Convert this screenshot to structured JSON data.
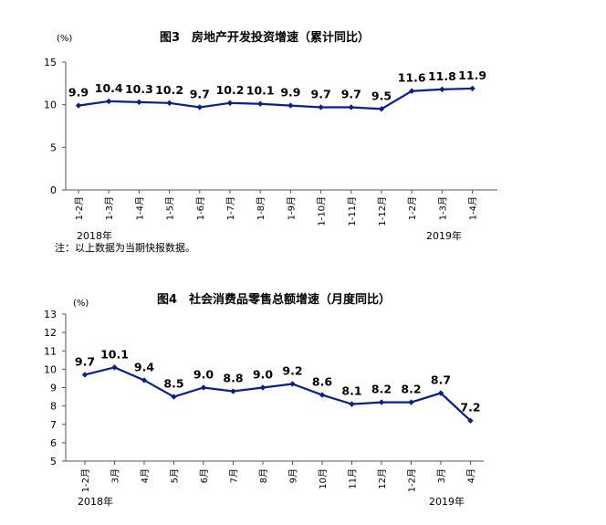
{
  "chart_data": [
    {
      "type": "line",
      "title": "图3　房地产开发投资增速（累计同比）",
      "unit": "(%)",
      "ylim": [
        0,
        15
      ],
      "yticks": [
        0,
        5,
        10,
        15
      ],
      "categories": [
        "1-2月",
        "1-3月",
        "1-4月",
        "1-5月",
        "1-6月",
        "1-7月",
        "1-8月",
        "1-9月",
        "1-10月",
        "1-11月",
        "1-12月",
        "1-2月",
        "1-3月",
        "1-4月"
      ],
      "values": [
        9.9,
        10.4,
        10.3,
        10.2,
        9.7,
        10.2,
        10.1,
        9.9,
        9.7,
        9.7,
        9.5,
        11.6,
        11.8,
        11.9
      ],
      "year_labels": [
        "2018年",
        "2019年"
      ],
      "note": "注：以上数据为当期快报数据。",
      "color": "#0a1f8f"
    },
    {
      "type": "line",
      "title": "图4　社会消费品零售总额增速（月度同比）",
      "unit": "(%)",
      "ylim": [
        5,
        13
      ],
      "yticks": [
        5,
        6,
        7,
        8,
        9,
        10,
        11,
        12,
        13
      ],
      "categories": [
        "1-2月",
        "3月",
        "4月",
        "5月",
        "6月",
        "7月",
        "8月",
        "9月",
        "10月",
        "11月",
        "12月",
        "1-2月",
        "3月",
        "4月"
      ],
      "values": [
        9.7,
        10.1,
        9.4,
        8.5,
        9.0,
        8.8,
        9.0,
        9.2,
        8.6,
        8.1,
        8.2,
        8.2,
        8.7,
        7.2
      ],
      "year_labels": [
        "2018年",
        "2019年"
      ],
      "color": "#0a1f8f"
    }
  ]
}
